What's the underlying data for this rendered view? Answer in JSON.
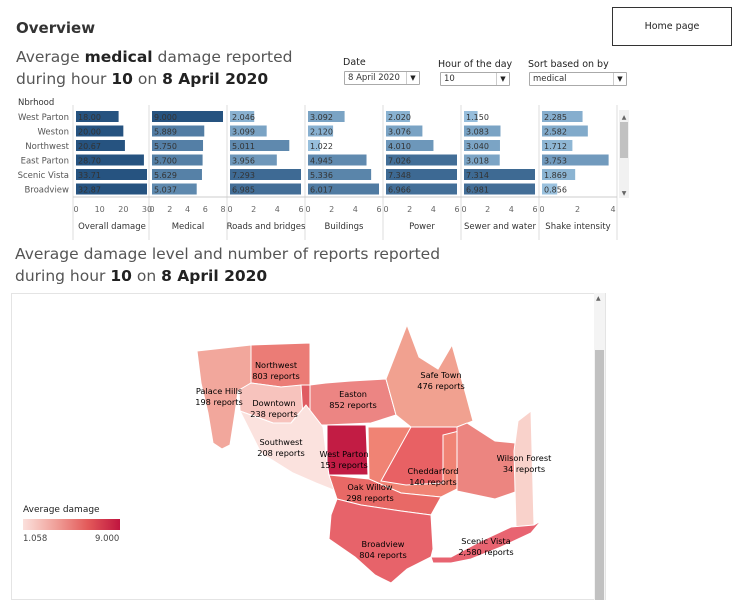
{
  "header": {
    "title": "Overview",
    "home_label": "Home page"
  },
  "title1": {
    "line1_prefix": "Average ",
    "line1_metric": "medical",
    "line1_suffix": " damage reported",
    "line2_prefix": "during hour ",
    "line2_hour": "10",
    "line2_mid": " on ",
    "line2_date": "8 April 2020"
  },
  "title2": {
    "line1": "Average damage level and number of reports reported",
    "line2_prefix": "during hour ",
    "line2_hour": "10",
    "line2_mid": " on ",
    "line2_date": "8 April 2020"
  },
  "filters": {
    "date": {
      "label": "Date",
      "value": "8 April 2020"
    },
    "hour": {
      "label": "Hour of the day",
      "value": "10"
    },
    "sort": {
      "label": "Sort based on by",
      "value": "medical"
    }
  },
  "chart_data": {
    "type": "bar",
    "row_header": "Nbrhood",
    "categories": [
      "West Parton",
      "Weston",
      "Northwest",
      "East Parton",
      "Scenic Vista",
      "Broadview"
    ],
    "panels": [
      {
        "name": "Overall damage",
        "values": [
          18.0,
          20.0,
          20.67,
          28.7,
          33.71,
          32.87
        ],
        "labels": [
          "18.00",
          "20.00",
          "20.67",
          "28.70",
          "33.71",
          "32.87"
        ],
        "max": 30,
        "ticks": [
          "0",
          "10",
          "20",
          "30"
        ]
      },
      {
        "name": "Medical",
        "values": [
          9.0,
          5.889,
          5.75,
          5.7,
          5.629,
          5.037
        ],
        "labels": [
          "9.000",
          "5.889",
          "5.750",
          "5.700",
          "5.629",
          "5.037"
        ],
        "max": 8,
        "ticks": [
          "0",
          "2",
          "4",
          "6",
          "8"
        ]
      },
      {
        "name": "Roads and bridges",
        "values": [
          2.046,
          3.099,
          5.011,
          3.956,
          7.293,
          6.985
        ],
        "labels": [
          "2.046",
          "3.099",
          "5.011",
          "3.956",
          "7.293",
          "6.985"
        ],
        "max": 6,
        "ticks": [
          "0",
          "2",
          "4",
          "6"
        ]
      },
      {
        "name": "Buildings",
        "values": [
          3.092,
          2.12,
          1.022,
          4.945,
          5.336,
          6.017
        ],
        "labels": [
          "3.092",
          "2.120",
          "1.022",
          "4.945",
          "5.336",
          "6.017"
        ],
        "max": 6,
        "ticks": [
          "0",
          "2",
          "4",
          "6"
        ]
      },
      {
        "name": "Power",
        "values": [
          2.02,
          3.076,
          4.01,
          7.026,
          7.348,
          6.966
        ],
        "labels": [
          "2.020",
          "3.076",
          "4.010",
          "7.026",
          "7.348",
          "6.966"
        ],
        "max": 6,
        "ticks": [
          "0",
          "2",
          "4",
          "6"
        ]
      },
      {
        "name": "Sewer and water",
        "values": [
          1.15,
          3.083,
          3.04,
          3.018,
          7.314,
          6.981
        ],
        "labels": [
          "1.150",
          "3.083",
          "3.040",
          "3.018",
          "7.314",
          "6.981"
        ],
        "max": 6,
        "ticks": [
          "0",
          "2",
          "4",
          "6"
        ]
      },
      {
        "name": "Shake intensity",
        "values": [
          2.285,
          2.582,
          1.712,
          3.753,
          1.869,
          0.856
        ],
        "labels": [
          "2.285",
          "2.582",
          "1.712",
          "3.753",
          "1.869",
          "0.856"
        ],
        "max": 4,
        "ticks": [
          "0",
          "2",
          "4"
        ]
      }
    ]
  },
  "map": {
    "legend_title": "Average damage",
    "legend_min": "1.058",
    "legend_max": "9.000",
    "regions": [
      {
        "name": "Palace Hills",
        "reports": "198 reports"
      },
      {
        "name": "Northwest",
        "reports": "803 reports"
      },
      {
        "name": "Downtown",
        "reports": "238 reports"
      },
      {
        "name": "Easton",
        "reports": "852 reports"
      },
      {
        "name": "Safe Town",
        "reports": "476 reports"
      },
      {
        "name": "Southwest",
        "reports": "208 reports"
      },
      {
        "name": "West Parton",
        "reports": "153 reports"
      },
      {
        "name": "Cheddarford",
        "reports": "140 reports"
      },
      {
        "name": "Wilson Forest",
        "reports": "34 reports"
      },
      {
        "name": "Oak Willow",
        "reports": "298 reports"
      },
      {
        "name": "Broadview",
        "reports": "804 reports"
      },
      {
        "name": "Scenic Vista",
        "reports": "2,580 reports"
      }
    ]
  }
}
